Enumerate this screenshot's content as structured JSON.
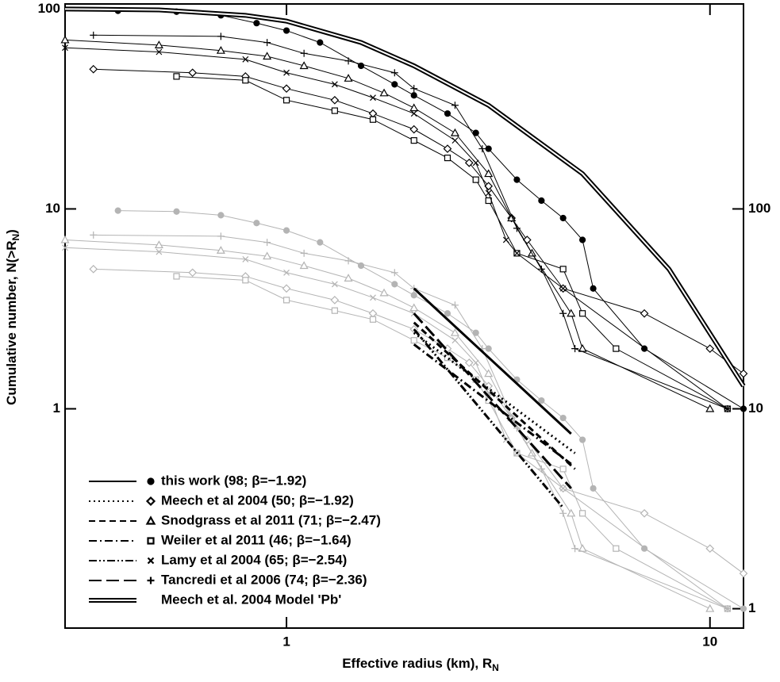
{
  "chart_data": {
    "type": "scatter",
    "x_label": {
      "text": "Effective radius (km), R",
      "sub": "N"
    },
    "y_label": {
      "text": "Cumulative number, N(>R",
      "sub": "N",
      "end": ")"
    },
    "log_x": true,
    "log_y": true,
    "xlim": [
      0.3,
      12
    ],
    "ylim": [
      0.08,
      106
    ],
    "y2lim": [
      0.8,
      1060
    ],
    "xticks": [
      1,
      10
    ],
    "yticks": [
      1,
      10,
      100
    ],
    "y2ticks": [
      1,
      10,
      100
    ],
    "series": [
      {
        "name": "this work (98; β=−1.92)",
        "marker": "circle",
        "dash": "solid",
        "color": "#000000",
        "x": [
          0.4,
          0.55,
          0.7,
          0.85,
          1.0,
          1.2,
          1.5,
          1.8,
          2.0,
          2.4,
          2.8,
          3.0,
          3.5,
          4.0,
          4.5,
          5.0,
          5.3,
          7,
          12
        ],
        "values": [
          98,
          97,
          93,
          85,
          78,
          68,
          52,
          42,
          37,
          30,
          24,
          20,
          14,
          11,
          9,
          7,
          4,
          2,
          1
        ]
      },
      {
        "name": "Meech et al 2004 (50; β=−1.92)",
        "marker": "diamond",
        "dash": "dotted",
        "color": "#000000",
        "x": [
          0.35,
          0.6,
          0.8,
          1.0,
          1.3,
          1.6,
          2.0,
          2.4,
          2.7,
          3.0,
          3.4,
          3.7,
          4.5,
          7,
          10,
          12
        ],
        "values": [
          50,
          48,
          46,
          40,
          35,
          30,
          25,
          20,
          17,
          13,
          9,
          7,
          4,
          3,
          2,
          1.5
        ]
      },
      {
        "name": "Snodgrass et al 2011 (71; β=−2.47)",
        "marker": "triangle",
        "dash": "dashed",
        "color": "#000000",
        "x": [
          0.3,
          0.5,
          0.7,
          0.9,
          1.1,
          1.4,
          1.7,
          2.0,
          2.5,
          3.0,
          3.4,
          3.8,
          4.7,
          5.0,
          10
        ],
        "values": [
          70,
          66,
          62,
          58,
          52,
          45,
          38,
          32,
          24,
          15,
          9,
          6,
          3,
          2,
          1
        ]
      },
      {
        "name": "Weiler et al 2011 (46; β=−1.64)",
        "marker": "square",
        "dash": "dashdot",
        "color": "#000000",
        "x": [
          0.55,
          0.8,
          1.0,
          1.3,
          1.6,
          2.0,
          2.4,
          2.8,
          3.0,
          3.5,
          4.5,
          5.0,
          6,
          11
        ],
        "values": [
          46,
          44,
          35,
          31,
          28,
          22,
          18,
          14,
          11,
          6,
          5,
          3,
          2,
          1
        ]
      },
      {
        "name": "Lamy et al 2004 (65; β=−2.54)",
        "marker": "cross",
        "dash": "dashdotdot",
        "color": "#000000",
        "x": [
          0.3,
          0.5,
          0.8,
          1.0,
          1.3,
          1.6,
          2.0,
          2.5,
          2.8,
          3.0,
          3.3,
          3.5,
          4.5,
          11
        ],
        "values": [
          64,
          61,
          56,
          48,
          42,
          36,
          30,
          22,
          17,
          12,
          7,
          6,
          4,
          1
        ]
      },
      {
        "name": "Tancredi et al 2006 (74; β=−2.36)",
        "marker": "plus",
        "dash": "longdash",
        "color": "#000000",
        "x": [
          0.35,
          0.7,
          0.9,
          1.1,
          1.4,
          1.8,
          2.0,
          2.5,
          2.9,
          3.5,
          4.0,
          4.5,
          4.8,
          11
        ],
        "values": [
          74,
          73,
          68,
          60,
          55,
          48,
          40,
          33,
          20,
          8,
          5,
          3,
          2,
          1
        ]
      }
    ],
    "series_y2": [
      {
        "marker": "circle",
        "axis": "y2",
        "color": "#b4b4b4",
        "x": [
          0.4,
          0.55,
          0.7,
          0.85,
          1.0,
          1.2,
          1.5,
          1.8,
          2.0,
          2.4,
          2.8,
          3.0,
          3.5,
          4.0,
          4.5,
          5.0,
          5.3,
          7,
          12
        ],
        "values": [
          98,
          97,
          93,
          85,
          78,
          68,
          52,
          42,
          37,
          30,
          24,
          20,
          14,
          11,
          9,
          7,
          4,
          2,
          1
        ]
      },
      {
        "marker": "diamond",
        "axis": "y2",
        "color": "#b4b4b4",
        "x": [
          0.35,
          0.6,
          0.8,
          1.0,
          1.3,
          1.6,
          2.0,
          2.4,
          2.7,
          3.0,
          3.4,
          3.7,
          4.5,
          7,
          10,
          12
        ],
        "values": [
          50,
          48,
          46,
          40,
          35,
          30,
          25,
          20,
          17,
          13,
          9,
          7,
          4,
          3,
          2,
          1.5
        ]
      },
      {
        "marker": "triangle",
        "axis": "y2",
        "color": "#b4b4b4",
        "x": [
          0.3,
          0.5,
          0.7,
          0.9,
          1.1,
          1.4,
          1.7,
          2.0,
          2.5,
          3.0,
          3.4,
          3.8,
          4.7,
          5.0,
          10
        ],
        "values": [
          70,
          66,
          62,
          58,
          52,
          45,
          38,
          32,
          24,
          15,
          9,
          6,
          3,
          2,
          1
        ]
      },
      {
        "marker": "square",
        "axis": "y2",
        "color": "#b4b4b4",
        "x": [
          0.55,
          0.8,
          1.0,
          1.3,
          1.6,
          2.0,
          2.4,
          2.8,
          3.0,
          3.5,
          4.5,
          5.0,
          6,
          11
        ],
        "values": [
          46,
          44,
          35,
          31,
          28,
          22,
          18,
          14,
          11,
          6,
          5,
          3,
          2,
          1
        ]
      },
      {
        "marker": "cross",
        "axis": "y2",
        "color": "#b4b4b4",
        "x": [
          0.3,
          0.5,
          0.8,
          1.0,
          1.3,
          1.6,
          2.0,
          2.5,
          2.8,
          3.0,
          3.3,
          3.5,
          4.5,
          11
        ],
        "values": [
          64,
          61,
          56,
          48,
          42,
          36,
          30,
          22,
          17,
          12,
          7,
          6,
          4,
          1
        ]
      },
      {
        "marker": "plus",
        "axis": "y2",
        "color": "#b4b4b4",
        "x": [
          0.35,
          0.7,
          0.9,
          1.1,
          1.4,
          1.8,
          2.0,
          2.5,
          2.9,
          3.5,
          4.0,
          4.5,
          4.8,
          11
        ],
        "values": [
          74,
          73,
          68,
          60,
          55,
          48,
          40,
          33,
          20,
          8,
          5,
          3,
          2,
          1
        ]
      }
    ],
    "fits": [
      {
        "dash": "solid",
        "x": [
          2,
          4.7
        ],
        "values": [
          4,
          0.75
        ]
      },
      {
        "dash": "dotted",
        "x": [
          2,
          4.8
        ],
        "values": [
          2.4,
          0.6
        ]
      },
      {
        "dash": "dashed",
        "x": [
          2,
          4.8
        ],
        "values": [
          2.7,
          0.5
        ]
      },
      {
        "dash": "dashdot",
        "x": [
          2,
          4.7
        ],
        "values": [
          2.1,
          0.53
        ]
      },
      {
        "dash": "dashdotdot",
        "x": [
          2,
          4.5
        ],
        "values": [
          2.5,
          0.32
        ]
      },
      {
        "dash": "longdash",
        "x": [
          2,
          4.7
        ],
        "values": [
          3,
          0.4
        ]
      }
    ],
    "model": {
      "name": "Meech et al. 2004 Model 'Pb'",
      "color": "#000000",
      "x": [
        0.3,
        0.5,
        0.8,
        1.0,
        1.5,
        2,
        3,
        5,
        8,
        12
      ],
      "values": [
        100,
        99,
        93,
        87,
        68,
        52,
        33,
        15,
        5,
        1.3
      ]
    }
  }
}
